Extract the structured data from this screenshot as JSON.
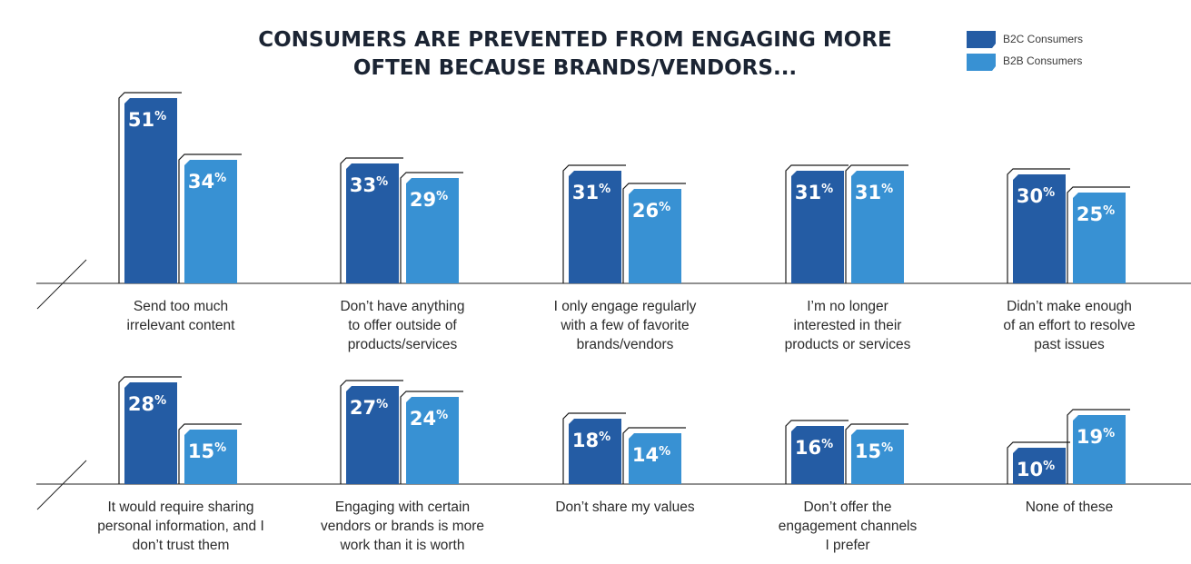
{
  "colors": {
    "b2c": "#245ca4",
    "b2b": "#3891d3",
    "text": "#2b2b2b",
    "title": "#1b2433"
  },
  "chart_data": {
    "type": "bar",
    "title_lines": [
      "CONSUMERS ARE PREVENTED FROM ENGAGING MORE",
      "OFTEN BECAUSE BRANDS/VENDORS..."
    ],
    "ylabel": "",
    "xlabel": "",
    "unit": "%",
    "legend": {
      "position": "top-right",
      "entries": [
        "B2C Consumers",
        "B2B Consumers"
      ]
    },
    "series": [
      {
        "name": "B2C Consumers",
        "values": [
          51,
          33,
          31,
          31,
          30,
          28,
          27,
          18,
          16,
          10
        ]
      },
      {
        "name": "B2B Consumers",
        "values": [
          34,
          29,
          26,
          31,
          25,
          15,
          24,
          14,
          15,
          19
        ]
      }
    ],
    "categories": [
      [
        "Send too much",
        "irrelevant content"
      ],
      [
        "Don’t have anything",
        "to offer outside of",
        "products/services"
      ],
      [
        "I only engage regularly",
        "with a few of favorite",
        "brands/vendors"
      ],
      [
        "I’m no longer",
        "interested in their",
        "products or services"
      ],
      [
        "Didn’t make enough",
        "of an effort to resolve",
        "past issues"
      ],
      [
        "It would require sharing",
        "personal information, and I",
        "don’t trust them"
      ],
      [
        "Engaging with certain",
        "vendors or brands is more",
        "work than it is worth"
      ],
      [
        "Don’t share my values"
      ],
      [
        "Don’t offer the",
        "engagement channels",
        "I prefer"
      ],
      [
        "None of these"
      ]
    ]
  }
}
